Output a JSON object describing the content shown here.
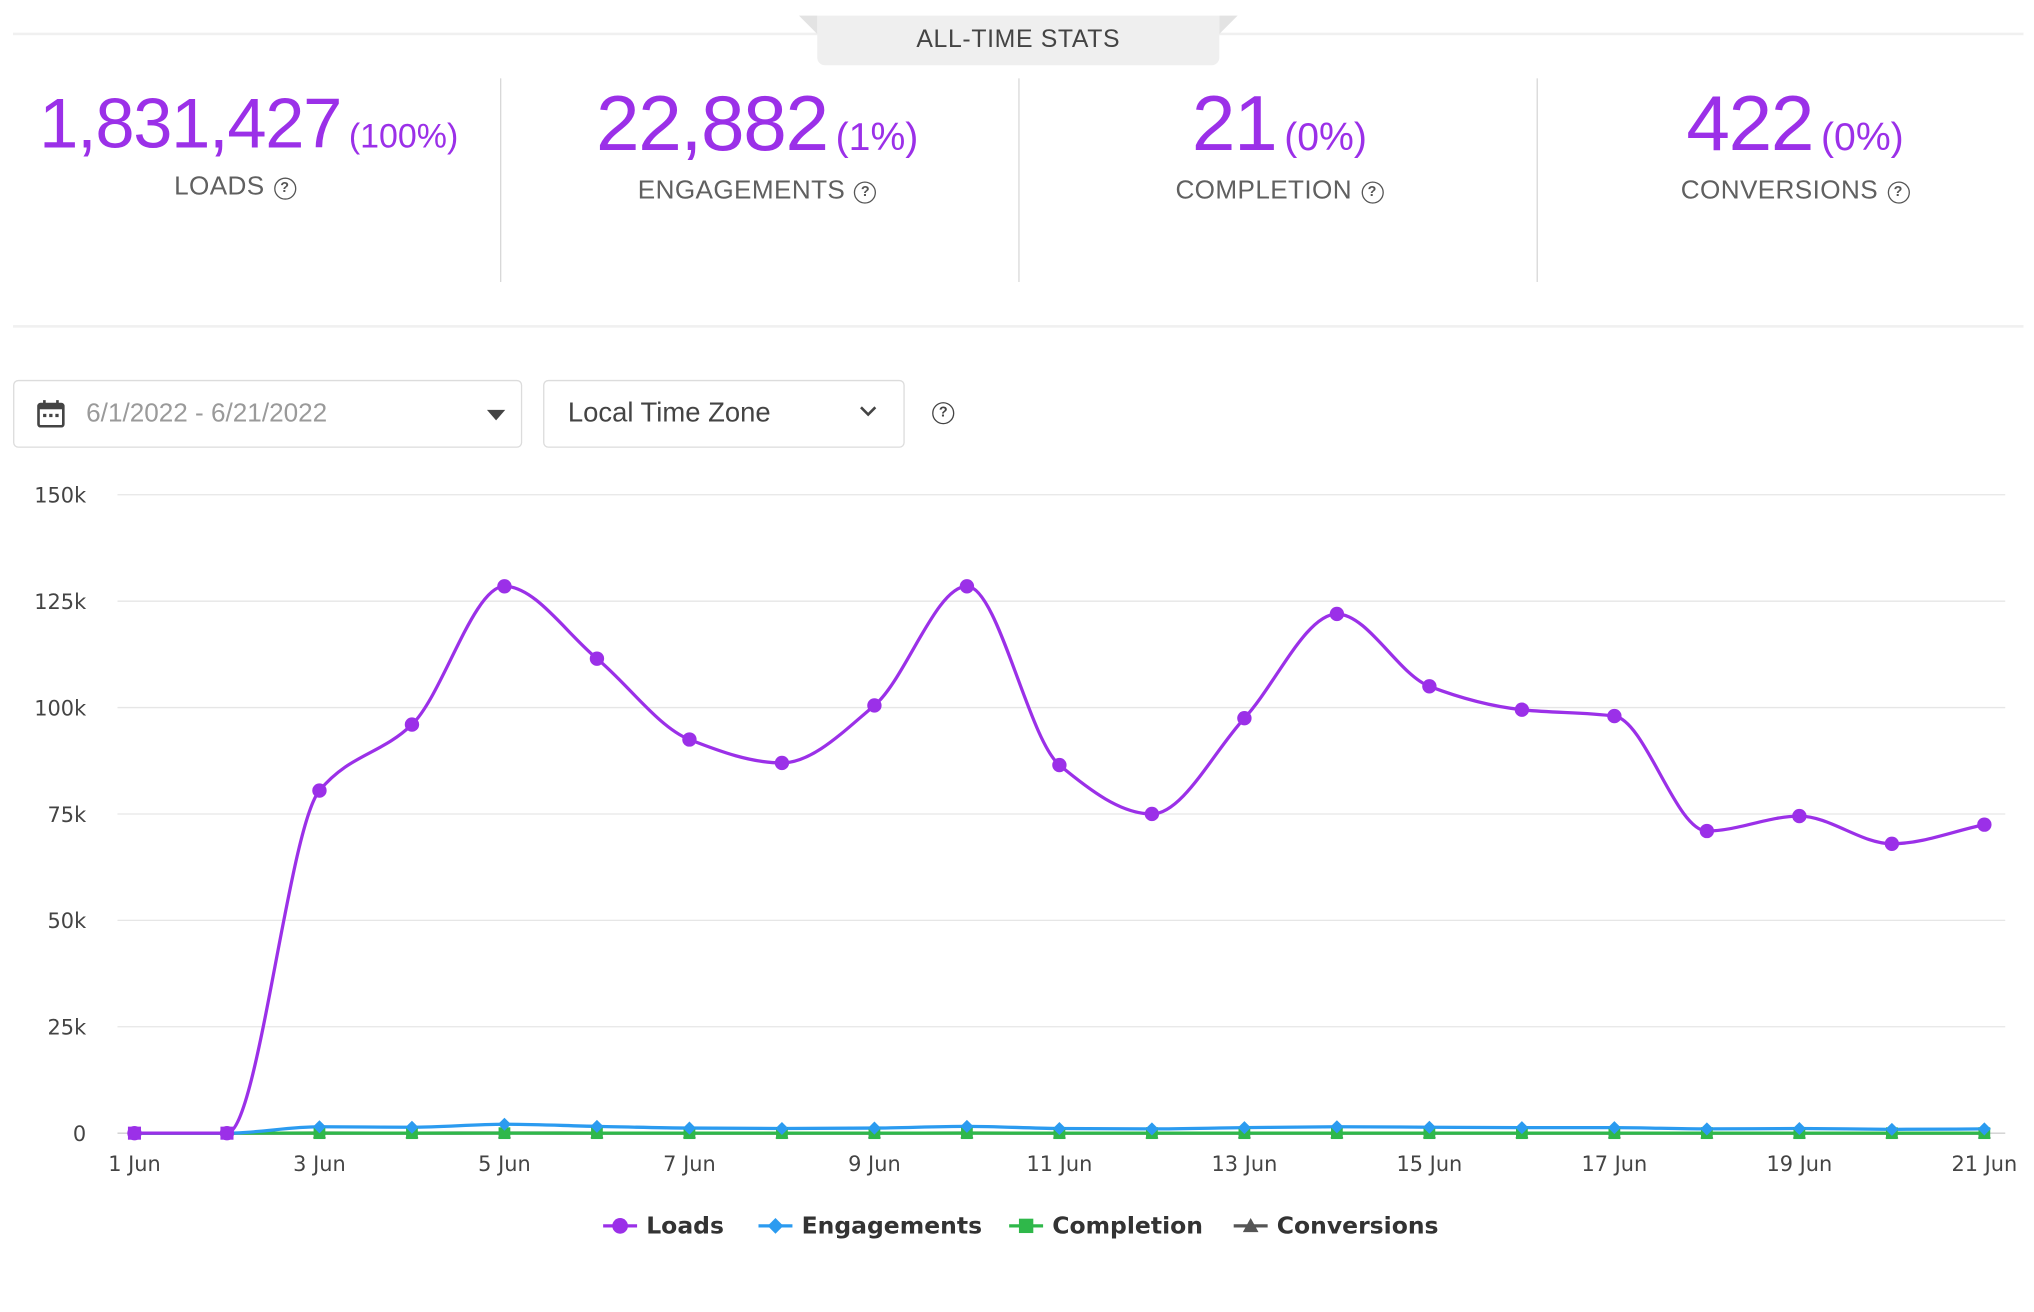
{
  "header": {
    "tab_label": "ALL-TIME STATS"
  },
  "stats": [
    {
      "value": "1,831,427",
      "pct": "(100%)",
      "label": "LOADS"
    },
    {
      "value": "22,882",
      "pct": "(1%)",
      "label": "ENGAGEMENTS"
    },
    {
      "value": "21",
      "pct": "(0%)",
      "label": "COMPLETION"
    },
    {
      "value": "422",
      "pct": "(0%)",
      "label": "CONVERSIONS"
    }
  ],
  "controls": {
    "date_range": "6/1/2022 - 6/21/2022",
    "time_zone": "Local Time Zone",
    "icons": {
      "calendar": "calendar-icon",
      "caret": "caret-down-icon",
      "chevron": "chevron-down-icon",
      "help": "help-icon"
    }
  },
  "colors": {
    "accent": "#9b30e8",
    "loads": "#9b30e8",
    "engagements": "#2b9bf0",
    "completion": "#2fb84a",
    "conversions": "#555555"
  },
  "chart_data": {
    "type": "line",
    "x": [
      "1 Jun",
      "2 Jun",
      "3 Jun",
      "4 Jun",
      "5 Jun",
      "6 Jun",
      "7 Jun",
      "8 Jun",
      "9 Jun",
      "10 Jun",
      "11 Jun",
      "12 Jun",
      "13 Jun",
      "14 Jun",
      "15 Jun",
      "16 Jun",
      "17 Jun",
      "18 Jun",
      "19 Jun",
      "20 Jun",
      "21 Jun"
    ],
    "x_tick_labels": [
      "1 Jun",
      "3 Jun",
      "5 Jun",
      "7 Jun",
      "9 Jun",
      "11 Jun",
      "13 Jun",
      "15 Jun",
      "17 Jun",
      "19 Jun",
      "21 Jun"
    ],
    "y_tick_labels": [
      "0",
      "25k",
      "50k",
      "75k",
      "100k",
      "125k",
      "150k"
    ],
    "ylim": [
      0,
      150000
    ],
    "grid": true,
    "legend": "bottom-center",
    "series": [
      {
        "name": "Loads",
        "marker": "circle",
        "values": [
          0,
          0,
          80500,
          96000,
          128500,
          111500,
          92500,
          87000,
          100500,
          128500,
          86500,
          75000,
          97500,
          122000,
          105000,
          99500,
          98000,
          71000,
          74500,
          68000,
          72500
        ]
      },
      {
        "name": "Engagements",
        "marker": "diamond",
        "values": [
          0,
          0,
          1500,
          1400,
          2100,
          1600,
          1200,
          1100,
          1200,
          1600,
          1100,
          1000,
          1300,
          1500,
          1400,
          1300,
          1300,
          1000,
          1100,
          900,
          1000
        ]
      },
      {
        "name": "Completion",
        "marker": "square",
        "values": [
          0,
          0,
          2,
          1,
          2,
          1,
          1,
          1,
          1,
          2,
          1,
          1,
          1,
          1,
          1,
          1,
          1,
          1,
          1,
          0,
          1
        ]
      },
      {
        "name": "Conversions",
        "marker": "triangle",
        "values": [
          0,
          0,
          25,
          22,
          30,
          24,
          20,
          18,
          20,
          28,
          18,
          16,
          20,
          24,
          22,
          20,
          20,
          16,
          18,
          14,
          16
        ]
      }
    ]
  }
}
